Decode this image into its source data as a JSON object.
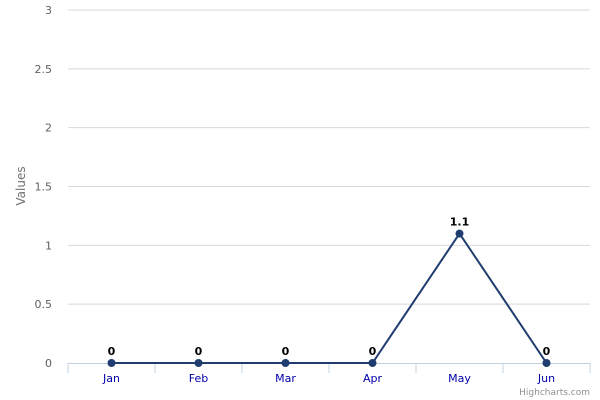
{
  "chart_data": {
    "type": "line",
    "categories": [
      "Jan",
      "Feb",
      "Mar",
      "Apr",
      "May",
      "Jun"
    ],
    "series": [
      {
        "values": [
          0,
          0,
          0,
          0,
          1.1,
          0
        ]
      }
    ],
    "data_labels": [
      "0",
      "0",
      "0",
      "0",
      "1.1",
      "0"
    ],
    "ylabel": "Values",
    "ylim": [
      0,
      3
    ],
    "yticks": [
      0,
      0.5,
      1,
      1.5,
      2,
      2.5,
      3
    ],
    "ytick_labels": [
      "0",
      "0.5",
      "1",
      "1.5",
      "2",
      "2.5",
      "3"
    ],
    "grid": true,
    "legend": "none",
    "colors": {
      "series": "#1f3d6e",
      "x_tick_labels": "#0000aa"
    }
  },
  "credits": "Highcharts.com"
}
